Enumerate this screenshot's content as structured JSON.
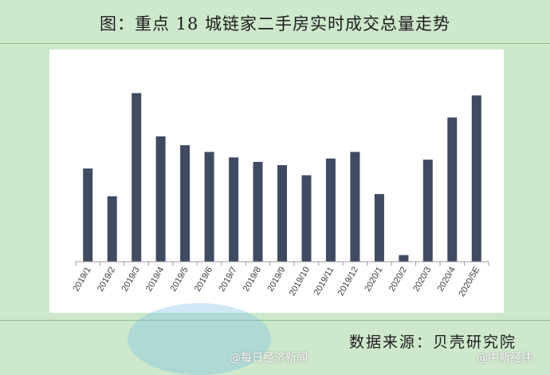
{
  "title": "图：重点 18 城链家二手房实时成交总量走势",
  "source": "数据来源：贝壳研究院",
  "watermarks": [
    "@每日经济新闻",
    "@中新经纬"
  ],
  "colors": {
    "bar": "#3f4b63",
    "background": "#cde8cb",
    "panel": "#ffffff"
  },
  "chart_data": {
    "type": "bar",
    "categories": [
      "2019/1",
      "2019/2",
      "2019/3",
      "2019/4",
      "2019/5",
      "2019/6",
      "2019/7",
      "2019/8",
      "2019/9",
      "2019/10",
      "2019/11",
      "2019/12",
      "2020/1",
      "2020/2",
      "2020/3",
      "2020/4",
      "2020/5E"
    ],
    "values": [
      42,
      29.5,
      76,
      56.5,
      52.5,
      49.5,
      47,
      45,
      43.5,
      39,
      46.5,
      49.5,
      30.5,
      3,
      46,
      65,
      75
    ],
    "ylim": [
      0,
      82
    ],
    "y_axis_visible": false,
    "grid": false,
    "legend": "none"
  }
}
